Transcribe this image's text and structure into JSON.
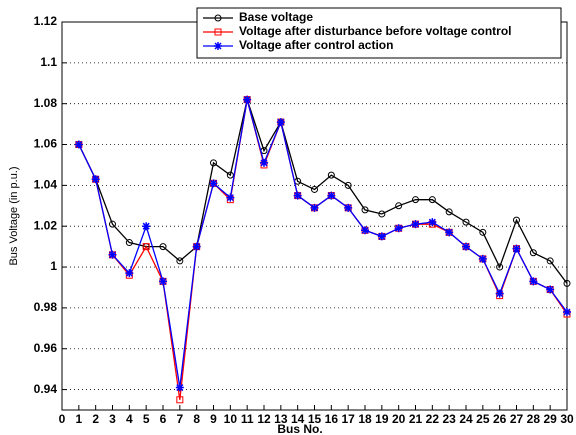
{
  "chart_data": {
    "type": "line",
    "x_label": "Bus No.",
    "y_label": "Bus Voltage (in p.u.)",
    "x": [
      1,
      2,
      3,
      4,
      5,
      6,
      7,
      8,
      9,
      10,
      11,
      12,
      13,
      14,
      15,
      16,
      17,
      18,
      19,
      20,
      21,
      22,
      23,
      24,
      25,
      26,
      27,
      28,
      29,
      30
    ],
    "series": [
      {
        "name": "Base voltage",
        "color": "#000000",
        "marker": "circle",
        "values": [
          1.06,
          1.043,
          1.021,
          1.012,
          1.01,
          1.01,
          1.003,
          1.01,
          1.051,
          1.045,
          1.082,
          1.057,
          1.071,
          1.042,
          1.038,
          1.045,
          1.04,
          1.028,
          1.026,
          1.03,
          1.033,
          1.033,
          1.027,
          1.022,
          1.017,
          1.0,
          1.023,
          1.007,
          1.003,
          0.992
        ]
      },
      {
        "name": "Voltage after disturbance before voltage control",
        "color": "#ff0000",
        "marker": "square",
        "values": [
          1.06,
          1.043,
          1.006,
          0.996,
          1.01,
          0.993,
          0.935,
          1.01,
          1.041,
          1.033,
          1.082,
          1.05,
          1.071,
          1.035,
          1.029,
          1.035,
          1.029,
          1.018,
          1.015,
          1.019,
          1.021,
          1.021,
          1.017,
          1.01,
          1.004,
          0.986,
          1.009,
          0.993,
          0.989,
          0.977
        ]
      },
      {
        "name": "Voltage after control action",
        "color": "#0000ff",
        "marker": "star",
        "values": [
          1.06,
          1.043,
          1.006,
          0.997,
          1.02,
          0.993,
          0.941,
          1.01,
          1.041,
          1.034,
          1.082,
          1.051,
          1.071,
          1.035,
          1.029,
          1.035,
          1.029,
          1.018,
          1.015,
          1.019,
          1.021,
          1.022,
          1.017,
          1.01,
          1.004,
          0.987,
          1.009,
          0.993,
          0.989,
          0.978
        ]
      }
    ],
    "xlim": [
      0,
      30
    ],
    "xticks": [
      0,
      1,
      2,
      3,
      4,
      5,
      6,
      7,
      8,
      9,
      10,
      11,
      12,
      13,
      14,
      15,
      16,
      17,
      18,
      19,
      20,
      21,
      22,
      23,
      24,
      25,
      26,
      27,
      28,
      29,
      30
    ],
    "ylim": [
      0.93,
      1.12
    ],
    "yticks": [
      0.94,
      0.96,
      0.98,
      1,
      1.02,
      1.04,
      1.06,
      1.08,
      1.1,
      1.12
    ],
    "grid": true,
    "legend": "upper right"
  }
}
